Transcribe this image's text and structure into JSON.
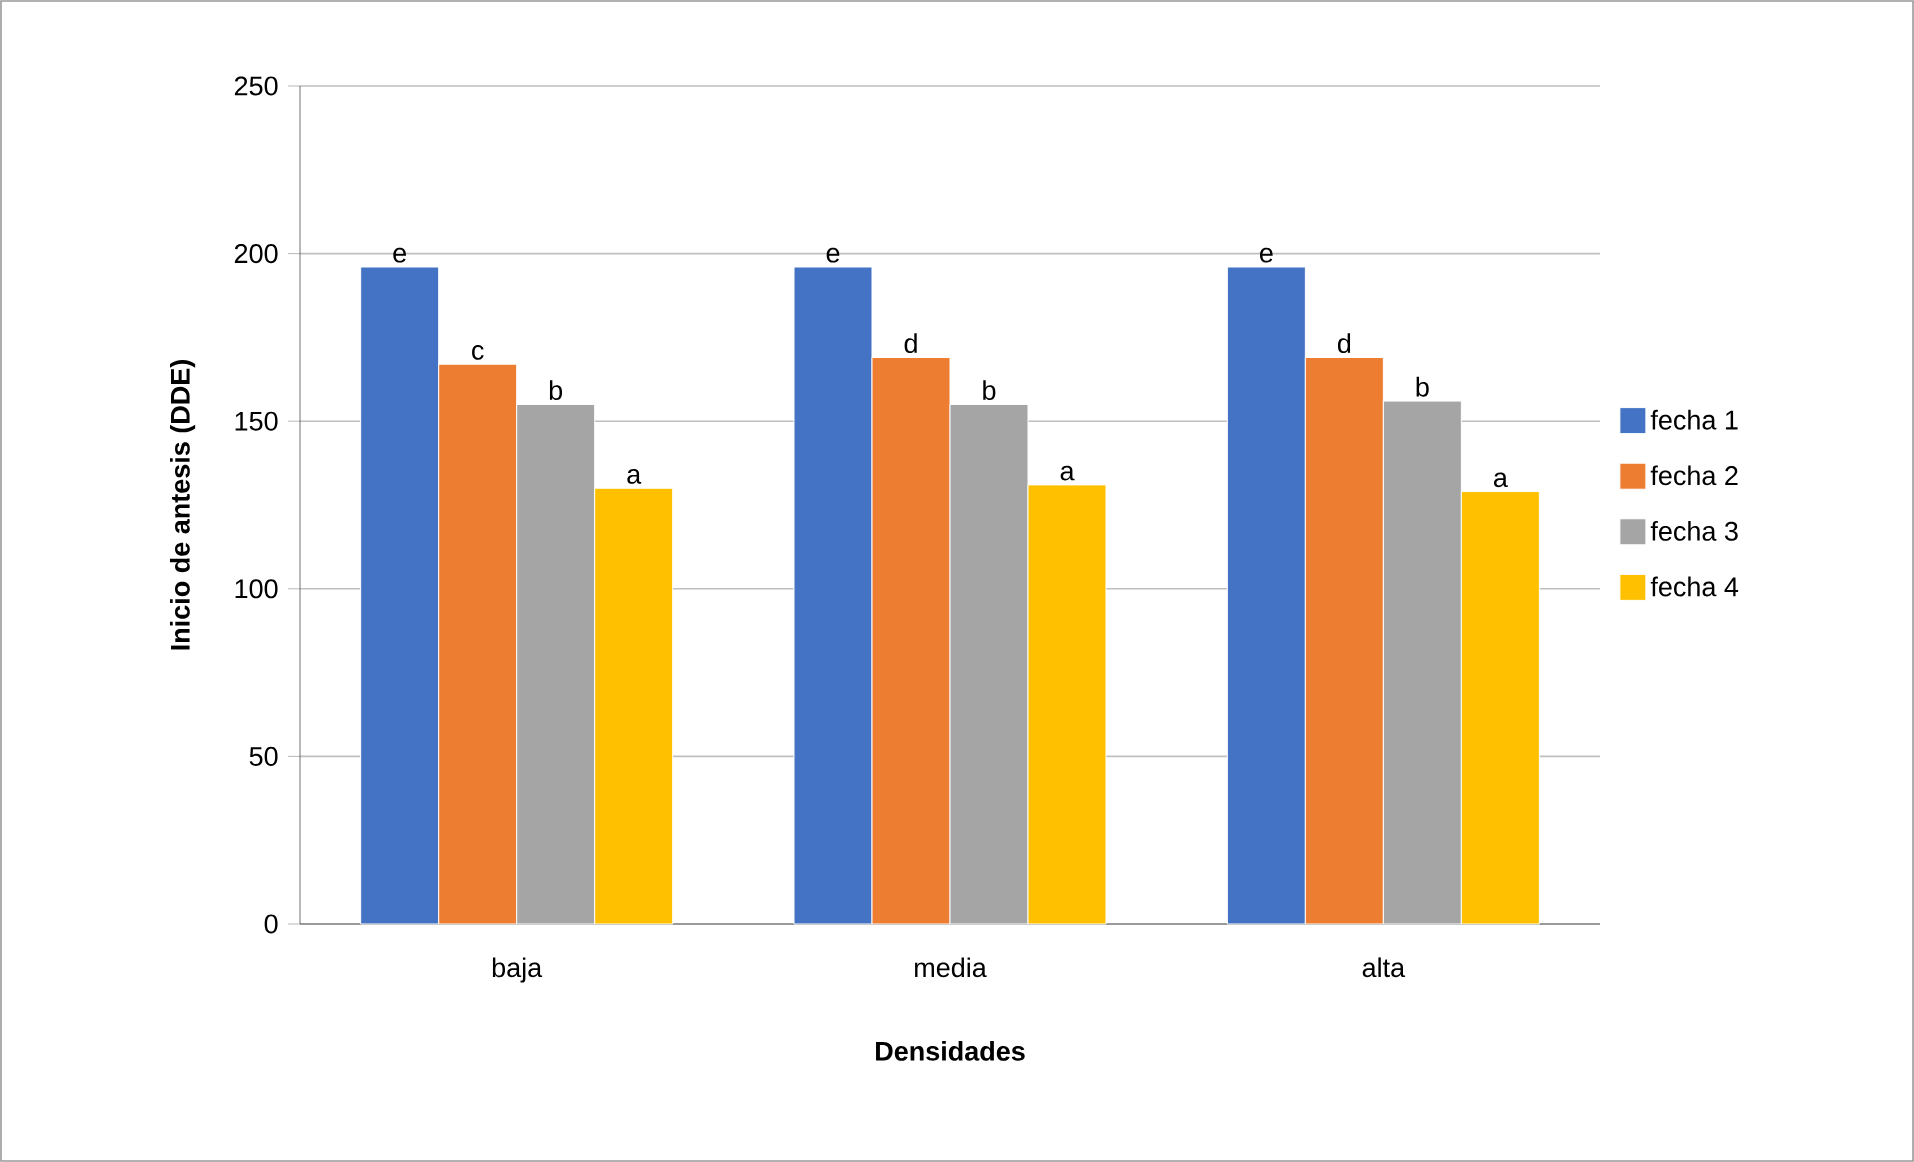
{
  "chart_data": {
    "type": "bar",
    "xlabel": "Densidades",
    "ylabel": "Inicio de antesis (DDE)",
    "categories": [
      "baja",
      "media",
      "alta"
    ],
    "series": [
      {
        "name": "fecha 1",
        "color": "#4472c4",
        "values": [
          196,
          196,
          196
        ]
      },
      {
        "name": "fecha 2",
        "color": "#ed7d31",
        "values": [
          167,
          169,
          169
        ]
      },
      {
        "name": "fecha 3",
        "color": "#a5a5a5",
        "values": [
          155,
          155,
          156
        ]
      },
      {
        "name": "fecha 4",
        "color": "#ffc000",
        "values": [
          130,
          131,
          129
        ]
      }
    ],
    "ylim": [
      0,
      250
    ],
    "yticks": [
      0,
      50,
      100,
      150,
      200,
      250
    ],
    "grid": "y",
    "legend": "right",
    "annotations": [
      "e",
      "c",
      "b",
      "a",
      "e",
      "d",
      "b",
      "a",
      "e",
      "d",
      "b",
      "a"
    ]
  }
}
